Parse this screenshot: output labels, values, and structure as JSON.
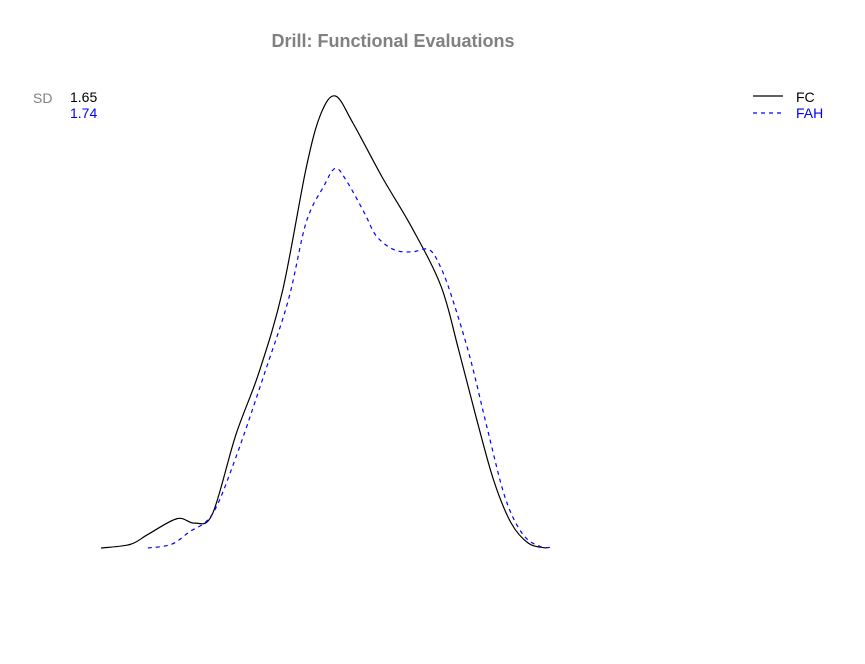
{
  "chart_data": {
    "type": "line",
    "title": "Drill: Functional Evaluations",
    "xlabel": "",
    "ylabel": "",
    "axes_shown": false,
    "grid": false,
    "legend_position": "top-right",
    "sd_label": "SD",
    "colors": {
      "title": "#808080",
      "sd_label": "#808080",
      "FC": "#000000",
      "FAH": "#0000ff"
    },
    "xlim": [
      0,
      100
    ],
    "ylim": [
      0,
      100
    ],
    "series": [
      {
        "name": "FC",
        "sd": "1.65",
        "color": "#000000",
        "dash": "solid",
        "points": [
          [
            0,
            0
          ],
          [
            5,
            0.8
          ],
          [
            8,
            3
          ],
          [
            13,
            6.5
          ],
          [
            16,
            5.5
          ],
          [
            19,
            7.5
          ],
          [
            23,
            25
          ],
          [
            27,
            39
          ],
          [
            31,
            57
          ],
          [
            35,
            84
          ],
          [
            37.5,
            96
          ],
          [
            40,
            100
          ],
          [
            43,
            94
          ],
          [
            48,
            82
          ],
          [
            53,
            71
          ],
          [
            58,
            58
          ],
          [
            61,
            44
          ],
          [
            64,
            29
          ],
          [
            67,
            15
          ],
          [
            70,
            5.5
          ],
          [
            73,
            1
          ],
          [
            76,
            0
          ]
        ]
      },
      {
        "name": "FAH",
        "sd": "1.74",
        "color": "#0000ff",
        "dash": "dashed",
        "points": [
          [
            8,
            0
          ],
          [
            12,
            0.8
          ],
          [
            15,
            3.5
          ],
          [
            19,
            7.5
          ],
          [
            23,
            20
          ],
          [
            28,
            39
          ],
          [
            32,
            55
          ],
          [
            35,
            72
          ],
          [
            38,
            80
          ],
          [
            40,
            84
          ],
          [
            42,
            81
          ],
          [
            45,
            74
          ],
          [
            47,
            69
          ],
          [
            50,
            66
          ],
          [
            53,
            65.5
          ],
          [
            56,
            66
          ],
          [
            58,
            62
          ],
          [
            60,
            55
          ],
          [
            63,
            42
          ],
          [
            66,
            26
          ],
          [
            69,
            11
          ],
          [
            72,
            3
          ],
          [
            75,
            0.3
          ],
          [
            77,
            0.2
          ]
        ]
      }
    ]
  }
}
